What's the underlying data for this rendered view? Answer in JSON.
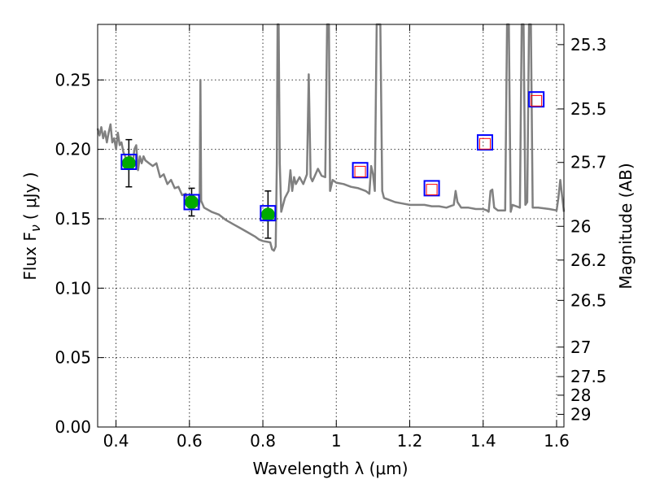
{
  "chart_data": {
    "type": "scatter",
    "xlabel": "Wavelength  λ (μm)",
    "ylabel": "Flux  F",
    "ylabel_sub": "ν",
    "ylabel_unit": "( μJy )",
    "right_ylabel": "Magnitude (AB)",
    "xlim": [
      0.35,
      1.62
    ],
    "ylim": [
      0.0,
      0.29
    ],
    "grid": true,
    "x_ticks": [
      {
        "v": 0.4,
        "label": "0.4"
      },
      {
        "v": 0.6,
        "label": "0.6"
      },
      {
        "v": 0.8,
        "label": "0.8"
      },
      {
        "v": 1.0,
        "label": "1"
      },
      {
        "v": 1.2,
        "label": "1.2"
      },
      {
        "v": 1.4,
        "label": "1.4"
      },
      {
        "v": 1.6,
        "label": "1.6"
      }
    ],
    "y_ticks": [
      {
        "v": 0.0,
        "label": "0.00"
      },
      {
        "v": 0.05,
        "label": "0.05"
      },
      {
        "v": 0.1,
        "label": "0.10"
      },
      {
        "v": 0.15,
        "label": "0.15"
      },
      {
        "v": 0.2,
        "label": "0.20"
      },
      {
        "v": 0.25,
        "label": "0.25"
      }
    ],
    "right_ticks": [
      {
        "mag": 25.3,
        "label": "25.3"
      },
      {
        "mag": 25.5,
        "label": "25.5"
      },
      {
        "mag": 25.7,
        "label": "25.7"
      },
      {
        "mag": 26,
        "label": "26"
      },
      {
        "mag": 26.2,
        "label": "26.2"
      },
      {
        "mag": 26.5,
        "label": "26.5"
      },
      {
        "mag": 27,
        "label": "27"
      },
      {
        "mag": 27.5,
        "label": "27.5"
      },
      {
        "mag": 28,
        "label": "28"
      },
      {
        "mag": 29,
        "label": "29"
      }
    ],
    "series": [
      {
        "style": "line",
        "color": "#808080",
        "points": [
          [
            0.35,
            0.215
          ],
          [
            0.355,
            0.21
          ],
          [
            0.36,
            0.216
          ],
          [
            0.365,
            0.208
          ],
          [
            0.37,
            0.213
          ],
          [
            0.375,
            0.205
          ],
          [
            0.38,
            0.212
          ],
          [
            0.385,
            0.218
          ],
          [
            0.39,
            0.205
          ],
          [
            0.395,
            0.208
          ],
          [
            0.4,
            0.2
          ],
          [
            0.405,
            0.212
          ],
          [
            0.41,
            0.203
          ],
          [
            0.415,
            0.205
          ],
          [
            0.42,
            0.198
          ],
          [
            0.425,
            0.195
          ],
          [
            0.43,
            0.19
          ],
          [
            0.435,
            0.192
          ],
          [
            0.44,
            0.195
          ],
          [
            0.445,
            0.188
          ],
          [
            0.45,
            0.2
          ],
          [
            0.455,
            0.203
          ],
          [
            0.46,
            0.185
          ],
          [
            0.465,
            0.195
          ],
          [
            0.47,
            0.19
          ],
          [
            0.475,
            0.195
          ],
          [
            0.48,
            0.192
          ],
          [
            0.49,
            0.19
          ],
          [
            0.5,
            0.188
          ],
          [
            0.51,
            0.19
          ],
          [
            0.52,
            0.18
          ],
          [
            0.53,
            0.182
          ],
          [
            0.54,
            0.175
          ],
          [
            0.55,
            0.178
          ],
          [
            0.56,
            0.172
          ],
          [
            0.57,
            0.173
          ],
          [
            0.58,
            0.167
          ],
          [
            0.59,
            0.168
          ],
          [
            0.595,
            0.16
          ],
          [
            0.6,
            0.163
          ],
          [
            0.61,
            0.162
          ],
          [
            0.62,
            0.16
          ],
          [
            0.625,
            0.158
          ],
          [
            0.628,
            0.163
          ],
          [
            0.63,
            0.25
          ],
          [
            0.632,
            0.163
          ],
          [
            0.64,
            0.158
          ],
          [
            0.66,
            0.155
          ],
          [
            0.68,
            0.153
          ],
          [
            0.7,
            0.149
          ],
          [
            0.72,
            0.146
          ],
          [
            0.74,
            0.143
          ],
          [
            0.76,
            0.14
          ],
          [
            0.78,
            0.137
          ],
          [
            0.79,
            0.135
          ],
          [
            0.8,
            0.134
          ],
          [
            0.82,
            0.133
          ],
          [
            0.825,
            0.128
          ],
          [
            0.83,
            0.127
          ],
          [
            0.835,
            0.13
          ],
          [
            0.838,
            0.19
          ],
          [
            0.84,
            0.29
          ],
          [
            0.843,
            0.29
          ],
          [
            0.846,
            0.19
          ],
          [
            0.85,
            0.155
          ],
          [
            0.86,
            0.165
          ],
          [
            0.87,
            0.17
          ],
          [
            0.875,
            0.185
          ],
          [
            0.88,
            0.17
          ],
          [
            0.885,
            0.18
          ],
          [
            0.89,
            0.175
          ],
          [
            0.9,
            0.18
          ],
          [
            0.91,
            0.175
          ],
          [
            0.92,
            0.182
          ],
          [
            0.925,
            0.254
          ],
          [
            0.93,
            0.18
          ],
          [
            0.935,
            0.177
          ],
          [
            0.94,
            0.18
          ],
          [
            0.95,
            0.186
          ],
          [
            0.96,
            0.181
          ],
          [
            0.97,
            0.18
          ],
          [
            0.975,
            0.29
          ],
          [
            0.98,
            0.29
          ],
          [
            0.983,
            0.17
          ],
          [
            0.99,
            0.178
          ],
          [
            1.0,
            0.176
          ],
          [
            1.02,
            0.175
          ],
          [
            1.04,
            0.173
          ],
          [
            1.06,
            0.172
          ],
          [
            1.08,
            0.17
          ],
          [
            1.09,
            0.168
          ],
          [
            1.095,
            0.188
          ],
          [
            1.1,
            0.182
          ],
          [
            1.105,
            0.17
          ],
          [
            1.11,
            0.29
          ],
          [
            1.12,
            0.29
          ],
          [
            1.125,
            0.17
          ],
          [
            1.13,
            0.165
          ],
          [
            1.14,
            0.164
          ],
          [
            1.16,
            0.162
          ],
          [
            1.18,
            0.161
          ],
          [
            1.2,
            0.16
          ],
          [
            1.22,
            0.16
          ],
          [
            1.24,
            0.16
          ],
          [
            1.26,
            0.159
          ],
          [
            1.28,
            0.159
          ],
          [
            1.3,
            0.158
          ],
          [
            1.32,
            0.16
          ],
          [
            1.325,
            0.17
          ],
          [
            1.33,
            0.162
          ],
          [
            1.34,
            0.158
          ],
          [
            1.36,
            0.158
          ],
          [
            1.38,
            0.157
          ],
          [
            1.4,
            0.157
          ],
          [
            1.41,
            0.156
          ],
          [
            1.415,
            0.155
          ],
          [
            1.42,
            0.17
          ],
          [
            1.425,
            0.171
          ],
          [
            1.43,
            0.158
          ],
          [
            1.44,
            0.156
          ],
          [
            1.46,
            0.156
          ],
          [
            1.465,
            0.29
          ],
          [
            1.47,
            0.29
          ],
          [
            1.475,
            0.155
          ],
          [
            1.48,
            0.16
          ],
          [
            1.5,
            0.158
          ],
          [
            1.505,
            0.29
          ],
          [
            1.51,
            0.29
          ],
          [
            1.515,
            0.16
          ],
          [
            1.52,
            0.162
          ],
          [
            1.525,
            0.29
          ],
          [
            1.53,
            0.29
          ],
          [
            1.535,
            0.158
          ],
          [
            1.55,
            0.158
          ],
          [
            1.58,
            0.157
          ],
          [
            1.6,
            0.156
          ],
          [
            1.605,
            0.165
          ],
          [
            1.61,
            0.178
          ],
          [
            1.62,
            0.155
          ]
        ]
      },
      {
        "style": "markers",
        "marker": "circle",
        "color": "#00aa00",
        "points": [
          {
            "x": 0.435,
            "y": 0.19,
            "err": 0.017
          },
          {
            "x": 0.606,
            "y": 0.162,
            "err": 0.01
          },
          {
            "x": 0.814,
            "y": 0.153,
            "err": 0.017
          }
        ]
      },
      {
        "style": "markers",
        "marker": "square-outline",
        "color": "#0000ff",
        "points": [
          {
            "x": 0.435,
            "y": 0.191
          },
          {
            "x": 0.606,
            "y": 0.162
          },
          {
            "x": 0.814,
            "y": 0.154
          },
          {
            "x": 1.065,
            "y": 0.185
          },
          {
            "x": 1.26,
            "y": 0.172
          },
          {
            "x": 1.405,
            "y": 0.205
          },
          {
            "x": 1.545,
            "y": 0.236
          }
        ]
      },
      {
        "style": "markers",
        "marker": "square-outline",
        "color": "#ff0000",
        "points": [
          {
            "x": 1.065,
            "y": 0.184
          },
          {
            "x": 1.26,
            "y": 0.171
          },
          {
            "x": 1.405,
            "y": 0.204
          },
          {
            "x": 1.545,
            "y": 0.235
          }
        ]
      }
    ]
  }
}
